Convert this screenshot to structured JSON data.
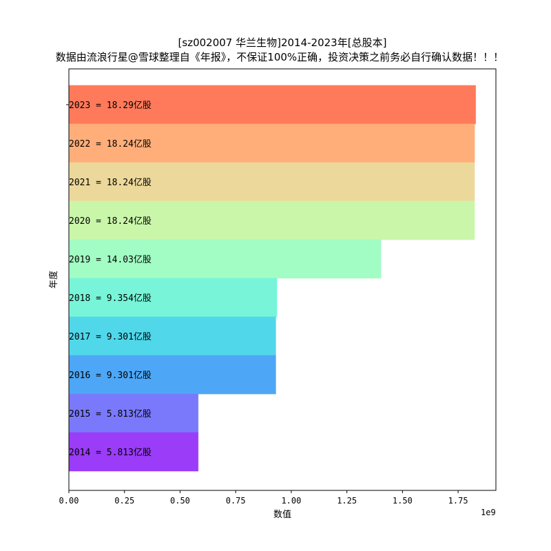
{
  "chart_data": {
    "type": "bar",
    "orientation": "horizontal",
    "title": "[sz002007 华兰生物]2014-2023年[总股本]",
    "subtitle": "数据由流浪行星@雪球整理自《年报》，不保证100%正确，投资决策之前务必自行确认数据！！！",
    "xlabel": "数值",
    "ylabel": "年度",
    "x_scale_label": "1e9",
    "xlim": [
      0,
      1920000000
    ],
    "x_ticks": [
      {
        "value": 0,
        "label": "0.00"
      },
      {
        "value": 250000000,
        "label": "0.25"
      },
      {
        "value": 500000000,
        "label": "0.50"
      },
      {
        "value": 750000000,
        "label": "0.75"
      },
      {
        "value": 1000000000,
        "label": "1.00"
      },
      {
        "value": 1250000000,
        "label": "1.25"
      },
      {
        "value": 1500000000,
        "label": "1.50"
      },
      {
        "value": 1750000000,
        "label": "1.75"
      }
    ],
    "grid": false,
    "legend": "none",
    "categories": [
      "2014",
      "2015",
      "2016",
      "2017",
      "2018",
      "2019",
      "2020",
      "2021",
      "2022",
      "2023"
    ],
    "values": [
      581300000,
      581300000,
      930100000,
      930100000,
      935400000,
      1403000000,
      1824000000,
      1824000000,
      1824000000,
      1829000000
    ],
    "labels": [
      "2014 = 5.813亿股",
      "2015 = 5.813亿股",
      "2016 = 9.301亿股",
      "2017 = 9.301亿股",
      "2018 = 9.354亿股",
      "2019 = 14.03亿股",
      "2020 = 18.24亿股",
      "2021 = 18.24亿股",
      "2022 = 18.24亿股",
      "2023 = 18.29亿股"
    ],
    "colors": [
      "#9a3cf8",
      "#7a79fb",
      "#4ea7f6",
      "#50d8ea",
      "#78f5d8",
      "#a2fdc4",
      "#caf6aa",
      "#ecd89a",
      "#ffae7a",
      "#ff7a5a"
    ]
  }
}
